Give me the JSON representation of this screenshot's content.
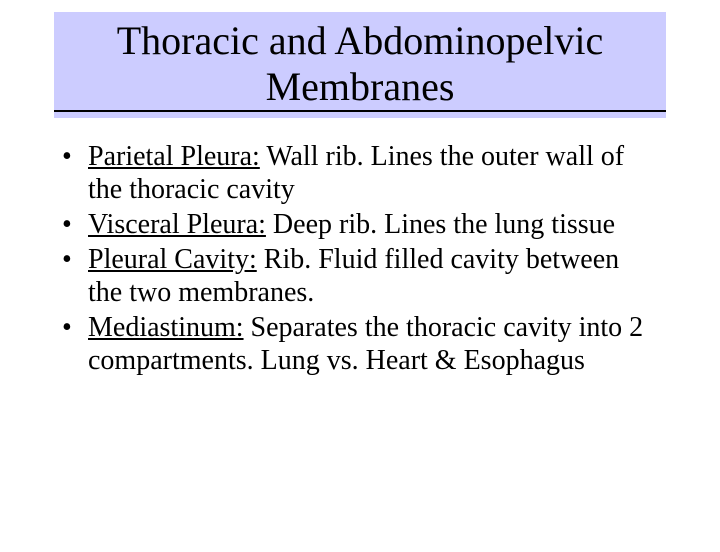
{
  "title": {
    "line1": "Thoracic and Abdominopelvic",
    "line2": "Membranes"
  },
  "colors": {
    "title_background": "#ccccff",
    "page_background": "#ffffff",
    "text": "#000000",
    "underline": "#000000"
  },
  "typography": {
    "title_fontsize": 40,
    "body_fontsize": 28,
    "font_family": "Times New Roman"
  },
  "bullets": [
    {
      "term": "Parietal Pleura:",
      "desc": "  Wall  rib. Lines the outer wall of the thoracic cavity"
    },
    {
      "term": "Visceral Pleura:",
      "desc": "  Deep rib.  Lines the lung tissue"
    },
    {
      "term": "Pleural Cavity:",
      "desc": " Rib.  Fluid filled cavity between the two membranes."
    },
    {
      "term": "Mediastinum:",
      "desc": "  Separates the thoracic cavity into 2 compartments.  Lung vs. Heart & Esophagus"
    }
  ]
}
